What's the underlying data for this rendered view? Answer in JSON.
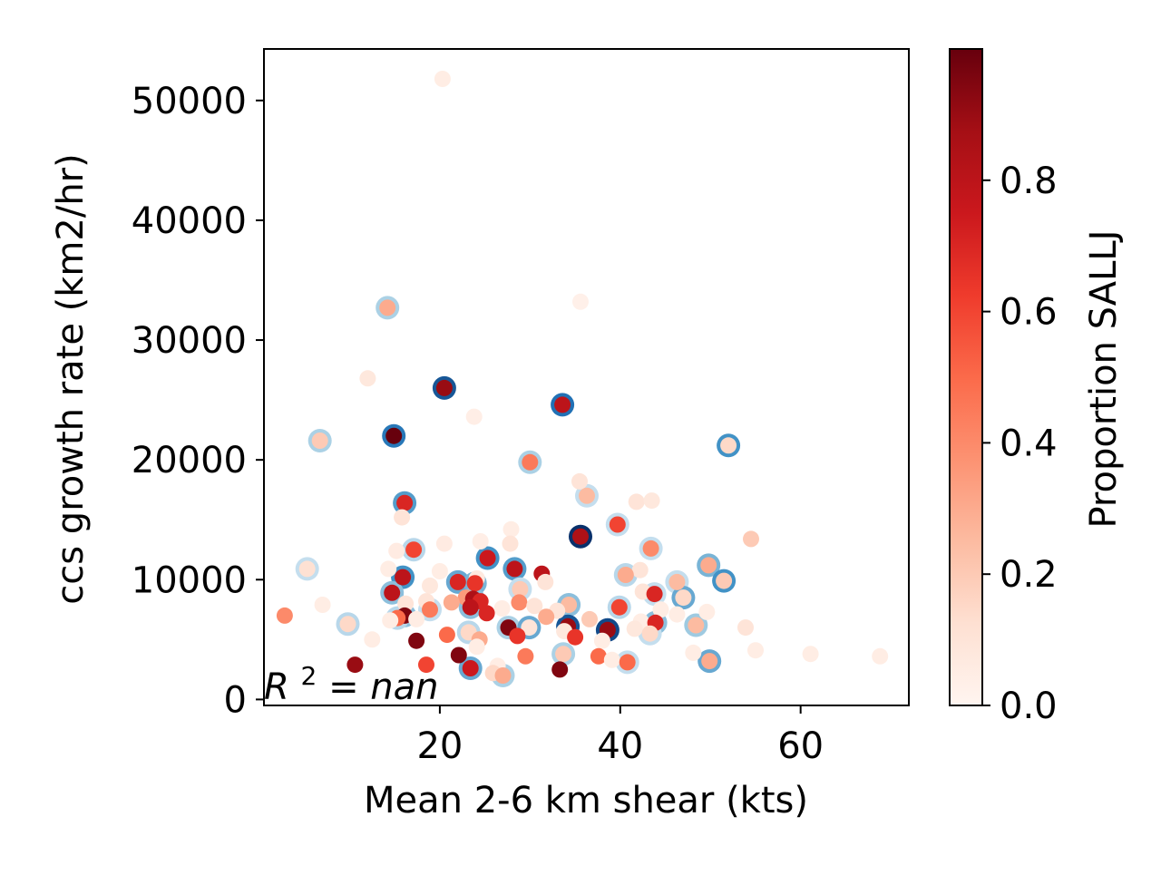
{
  "chart_data": {
    "type": "scatter",
    "title": "",
    "xlabel": "Mean 2-6 km shear (kts)",
    "ylabel": "ccs growth rate (km2/hr)",
    "xlim": [
      0.5,
      72
    ],
    "ylim": [
      -500,
      54300
    ],
    "xticks": [
      20,
      40,
      60
    ],
    "yticks": [
      0,
      10000,
      20000,
      30000,
      40000,
      50000
    ],
    "xtick_labels": [
      "20",
      "40",
      "60"
    ],
    "ytick_labels": [
      "0",
      "10000",
      "20000",
      "30000",
      "40000",
      "50000"
    ],
    "annotation": {
      "prefix": "R",
      "superscript": "2",
      "suffix": " = nan"
    },
    "grid": false,
    "colorbar": {
      "label": "Proportion SALLJ",
      "range": [
        0,
        1
      ],
      "ticks": [
        0.0,
        0.2,
        0.4,
        0.6,
        0.8
      ],
      "tick_labels": [
        "0.0",
        "0.2",
        "0.4",
        "0.6",
        "0.8"
      ],
      "colormap_stops": [
        "#fff5f0",
        "#fee0d2",
        "#fcbba1",
        "#fc9272",
        "#fb6a4a",
        "#ef3b2c",
        "#cb181d",
        "#a50f15",
        "#67000d"
      ]
    },
    "ring_colormap_stops": [
      "#deebf7",
      "#9ecae1",
      "#4292c6",
      "#2171b5",
      "#08306b"
    ],
    "points": [
      {
        "x": 20.3,
        "y": 51800,
        "c": 0.05,
        "r": null
      },
      {
        "x": 14.2,
        "y": 32700,
        "c": 0.3,
        "r": 0.2
      },
      {
        "x": 35.6,
        "y": 33200,
        "c": 0.03,
        "r": null
      },
      {
        "x": 12.0,
        "y": 26800,
        "c": 0.08,
        "r": null
      },
      {
        "x": 20.5,
        "y": 26000,
        "c": 0.9,
        "r": 0.85
      },
      {
        "x": 33.6,
        "y": 24600,
        "c": 0.8,
        "r": 0.75
      },
      {
        "x": 23.8,
        "y": 23600,
        "c": 0.04,
        "r": null
      },
      {
        "x": 14.9,
        "y": 22000,
        "c": 1.0,
        "r": 0.7
      },
      {
        "x": 6.7,
        "y": 21600,
        "c": 0.2,
        "r": 0.2
      },
      {
        "x": 52.0,
        "y": 21200,
        "c": 0.15,
        "r": 0.5
      },
      {
        "x": 30.0,
        "y": 19800,
        "c": 0.45,
        "r": 0.2
      },
      {
        "x": 35.5,
        "y": 18200,
        "c": 0.1,
        "r": null
      },
      {
        "x": 36.3,
        "y": 17000,
        "c": 0.25,
        "r": 0.1
      },
      {
        "x": 41.8,
        "y": 16500,
        "c": 0.1,
        "r": null
      },
      {
        "x": 43.5,
        "y": 16600,
        "c": 0.08,
        "r": null
      },
      {
        "x": 16.1,
        "y": 16400,
        "c": 0.7,
        "r": 0.45
      },
      {
        "x": 15.8,
        "y": 15200,
        "c": 0.1,
        "r": null
      },
      {
        "x": 39.7,
        "y": 14600,
        "c": 0.6,
        "r": 0.1
      },
      {
        "x": 27.9,
        "y": 14200,
        "c": 0.05,
        "r": null
      },
      {
        "x": 35.6,
        "y": 13600,
        "c": 0.85,
        "r": 1.0
      },
      {
        "x": 54.5,
        "y": 13400,
        "c": 0.2,
        "r": null
      },
      {
        "x": 24.5,
        "y": 13200,
        "c": 0.04,
        "r": null
      },
      {
        "x": 20.5,
        "y": 13000,
        "c": 0.06,
        "r": null
      },
      {
        "x": 27.8,
        "y": 13000,
        "c": 0.1,
        "r": null
      },
      {
        "x": 17.1,
        "y": 12500,
        "c": 0.6,
        "r": 0.15
      },
      {
        "x": 43.4,
        "y": 12600,
        "c": 0.4,
        "r": 0.1
      },
      {
        "x": 15.2,
        "y": 12400,
        "c": 0.06,
        "r": null
      },
      {
        "x": 25.3,
        "y": 11800,
        "c": 0.75,
        "r": 0.5
      },
      {
        "x": 49.8,
        "y": 11200,
        "c": 0.3,
        "r": 0.35
      },
      {
        "x": 5.3,
        "y": 10900,
        "c": 0.12,
        "r": 0.1
      },
      {
        "x": 28.3,
        "y": 10900,
        "c": 0.8,
        "r": 0.45
      },
      {
        "x": 14.3,
        "y": 10900,
        "c": 0.05,
        "r": null
      },
      {
        "x": 20.0,
        "y": 10700,
        "c": 0.05,
        "r": null
      },
      {
        "x": 42.2,
        "y": 10800,
        "c": 0.1,
        "r": null
      },
      {
        "x": 31.3,
        "y": 10500,
        "c": 0.8,
        "r": null
      },
      {
        "x": 40.6,
        "y": 10400,
        "c": 0.3,
        "r": 0.15
      },
      {
        "x": 15.9,
        "y": 10200,
        "c": 0.8,
        "r": 0.5
      },
      {
        "x": 24.1,
        "y": 10100,
        "c": 0.07,
        "r": null
      },
      {
        "x": 51.5,
        "y": 9900,
        "c": 0.2,
        "r": 0.5
      },
      {
        "x": 22.0,
        "y": 9800,
        "c": 0.7,
        "r": 0.4
      },
      {
        "x": 31.7,
        "y": 9800,
        "c": 0.1,
        "r": null
      },
      {
        "x": 46.3,
        "y": 9800,
        "c": 0.25,
        "r": 0.1
      },
      {
        "x": 23.9,
        "y": 9700,
        "c": 0.65,
        "r": 0.35
      },
      {
        "x": 18.9,
        "y": 9500,
        "c": 0.08,
        "r": null
      },
      {
        "x": 28.9,
        "y": 9200,
        "c": 0.2,
        "r": 0.1
      },
      {
        "x": 42.5,
        "y": 9000,
        "c": 0.1,
        "r": null
      },
      {
        "x": 14.7,
        "y": 8900,
        "c": 0.8,
        "r": 0.3
      },
      {
        "x": 43.8,
        "y": 8800,
        "c": 0.7,
        "r": 0.1
      },
      {
        "x": 47.0,
        "y": 8500,
        "c": 0.15,
        "r": 0.4
      },
      {
        "x": 22.9,
        "y": 8500,
        "c": 0.35,
        "r": null
      },
      {
        "x": 23.7,
        "y": 8400,
        "c": 0.85,
        "r": 0.3
      },
      {
        "x": 18.5,
        "y": 8200,
        "c": 0.1,
        "r": null
      },
      {
        "x": 24.5,
        "y": 8200,
        "c": 0.7,
        "r": null
      },
      {
        "x": 21.3,
        "y": 8100,
        "c": 0.3,
        "r": null
      },
      {
        "x": 28.8,
        "y": 8100,
        "c": 0.4,
        "r": null
      },
      {
        "x": 16.2,
        "y": 8000,
        "c": 0.1,
        "r": null
      },
      {
        "x": 34.3,
        "y": 7900,
        "c": 0.25,
        "r": 0.3
      },
      {
        "x": 7.0,
        "y": 7900,
        "c": 0.05,
        "r": null
      },
      {
        "x": 30.5,
        "y": 7800,
        "c": 0.1,
        "r": null
      },
      {
        "x": 39.9,
        "y": 7700,
        "c": 0.6,
        "r": 0.15
      },
      {
        "x": 23.4,
        "y": 7700,
        "c": 0.8,
        "r": 0.3
      },
      {
        "x": 26.9,
        "y": 7600,
        "c": 0.05,
        "r": null
      },
      {
        "x": 18.9,
        "y": 7500,
        "c": 0.45,
        "r": 0.1
      },
      {
        "x": 44.5,
        "y": 7500,
        "c": 0.05,
        "r": null
      },
      {
        "x": 33.0,
        "y": 7400,
        "c": 0.1,
        "r": null
      },
      {
        "x": 49.6,
        "y": 7300,
        "c": 0.05,
        "r": null
      },
      {
        "x": 25.2,
        "y": 7200,
        "c": 0.7,
        "r": null
      },
      {
        "x": 46.3,
        "y": 7100,
        "c": 0.05,
        "r": null
      },
      {
        "x": 2.8,
        "y": 7000,
        "c": 0.4,
        "r": null
      },
      {
        "x": 16.1,
        "y": 7000,
        "c": 0.95,
        "r": 0.3
      },
      {
        "x": 31.8,
        "y": 6900,
        "c": 0.3,
        "r": null
      },
      {
        "x": 15.3,
        "y": 6800,
        "c": 0.5,
        "r": 0.15
      },
      {
        "x": 36.6,
        "y": 6700,
        "c": 0.2,
        "r": null
      },
      {
        "x": 17.4,
        "y": 6700,
        "c": 0.05,
        "r": null
      },
      {
        "x": 14.5,
        "y": 6600,
        "c": 0.05,
        "r": null
      },
      {
        "x": 42.3,
        "y": 6500,
        "c": 0.05,
        "r": null
      },
      {
        "x": 43.9,
        "y": 6400,
        "c": 0.7,
        "r": 0.3
      },
      {
        "x": 9.8,
        "y": 6300,
        "c": 0.15,
        "r": 0.15
      },
      {
        "x": 48.4,
        "y": 6200,
        "c": 0.25,
        "r": 0.25
      },
      {
        "x": 34.2,
        "y": 6100,
        "c": 0.9,
        "r": 0.85
      },
      {
        "x": 27.6,
        "y": 6000,
        "c": 0.95,
        "r": 0.2
      },
      {
        "x": 29.9,
        "y": 6000,
        "c": 0.1,
        "r": 0.4
      },
      {
        "x": 53.9,
        "y": 6000,
        "c": 0.1,
        "r": null
      },
      {
        "x": 41.6,
        "y": 5900,
        "c": 0.08,
        "r": null
      },
      {
        "x": 38.6,
        "y": 5800,
        "c": 0.9,
        "r": 0.9
      },
      {
        "x": 33.8,
        "y": 5700,
        "c": 0.08,
        "r": null
      },
      {
        "x": 23.2,
        "y": 5600,
        "c": 0.15,
        "r": 0.15
      },
      {
        "x": 43.3,
        "y": 5500,
        "c": 0.15,
        "r": 0.1
      },
      {
        "x": 20.8,
        "y": 5400,
        "c": 0.5,
        "r": null
      },
      {
        "x": 28.6,
        "y": 5300,
        "c": 0.65,
        "r": null
      },
      {
        "x": 35.0,
        "y": 5200,
        "c": 0.65,
        "r": null
      },
      {
        "x": 24.4,
        "y": 5000,
        "c": 0.3,
        "r": null
      },
      {
        "x": 12.5,
        "y": 5000,
        "c": 0.05,
        "r": null
      },
      {
        "x": 17.4,
        "y": 4900,
        "c": 0.95,
        "r": null
      },
      {
        "x": 38.0,
        "y": 4900,
        "c": 0.05,
        "r": null
      },
      {
        "x": 24.1,
        "y": 4400,
        "c": 0.05,
        "r": null
      },
      {
        "x": 55.0,
        "y": 4100,
        "c": 0.05,
        "r": null
      },
      {
        "x": 33.7,
        "y": 3800,
        "c": 0.2,
        "r": 0.2
      },
      {
        "x": 48.1,
        "y": 3900,
        "c": 0.05,
        "r": null
      },
      {
        "x": 61.1,
        "y": 3800,
        "c": 0.05,
        "r": null
      },
      {
        "x": 22.1,
        "y": 3700,
        "c": 0.95,
        "r": null
      },
      {
        "x": 29.5,
        "y": 3600,
        "c": 0.45,
        "r": null
      },
      {
        "x": 37.6,
        "y": 3600,
        "c": 0.5,
        "r": null
      },
      {
        "x": 68.8,
        "y": 3600,
        "c": 0.05,
        "r": null
      },
      {
        "x": 39.1,
        "y": 3300,
        "c": 0.05,
        "r": null
      },
      {
        "x": 49.9,
        "y": 3200,
        "c": 0.3,
        "r": 0.4
      },
      {
        "x": 40.8,
        "y": 3100,
        "c": 0.5,
        "r": 0.1
      },
      {
        "x": 10.6,
        "y": 2900,
        "c": 0.9,
        "r": null
      },
      {
        "x": 18.5,
        "y": 2900,
        "c": 0.6,
        "r": null
      },
      {
        "x": 26.4,
        "y": 2800,
        "c": 0.05,
        "r": null
      },
      {
        "x": 23.4,
        "y": 2600,
        "c": 0.75,
        "r": 0.4
      },
      {
        "x": 33.3,
        "y": 2500,
        "c": 0.95,
        "r": null
      },
      {
        "x": 25.9,
        "y": 2200,
        "c": 0.15,
        "r": null
      },
      {
        "x": 27.0,
        "y": 2000,
        "c": 0.3,
        "r": 0.2
      }
    ]
  }
}
